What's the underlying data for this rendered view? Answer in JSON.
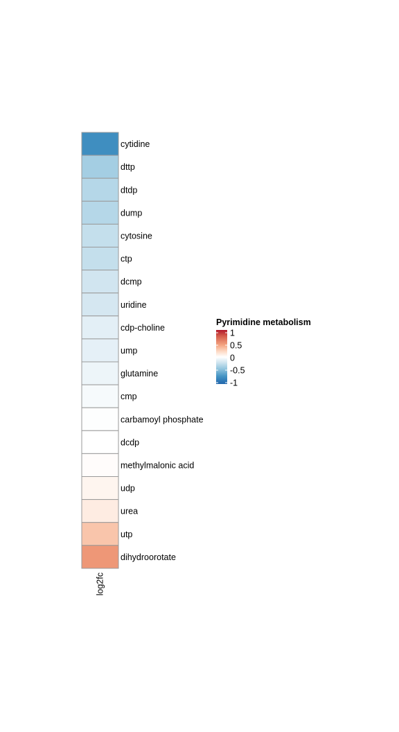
{
  "chart_data": {
    "type": "heatmap",
    "columns": [
      "log2fc"
    ],
    "rows": [
      {
        "label": "cytidine",
        "value": -0.78
      },
      {
        "label": "dttp",
        "value": -0.43
      },
      {
        "label": "dtdp",
        "value": -0.36
      },
      {
        "label": "dump",
        "value": -0.36
      },
      {
        "label": "cytosine",
        "value": -0.3
      },
      {
        "label": "ctp",
        "value": -0.3
      },
      {
        "label": "dcmp",
        "value": -0.25
      },
      {
        "label": "uridine",
        "value": -0.23
      },
      {
        "label": "cdp-choline",
        "value": -0.15
      },
      {
        "label": "ump",
        "value": -0.14
      },
      {
        "label": "glutamine",
        "value": -0.1
      },
      {
        "label": "cmp",
        "value": -0.05
      },
      {
        "label": "carbamoyl phosphate",
        "value": -0.01
      },
      {
        "label": "dcdp",
        "value": 0.0
      },
      {
        "label": "methylmalonic acid",
        "value": 0.02
      },
      {
        "label": "udp",
        "value": 0.07
      },
      {
        "label": "urea",
        "value": 0.13
      },
      {
        "label": "utp",
        "value": 0.35
      },
      {
        "label": "dihydroorotate",
        "value": 0.55
      }
    ],
    "legend": {
      "title": "Pyrimidine metabolism",
      "ticks": [
        1,
        0.5,
        0,
        -0.5,
        -1
      ],
      "tick_labels": [
        "1",
        "0.5",
        "0",
        "-0.5",
        "-1"
      ],
      "range": [
        -1,
        1
      ],
      "colors": {
        "low": "#2166AC",
        "mid": "#FFFFFF",
        "high": "#B2182B"
      },
      "placement": "right"
    }
  }
}
